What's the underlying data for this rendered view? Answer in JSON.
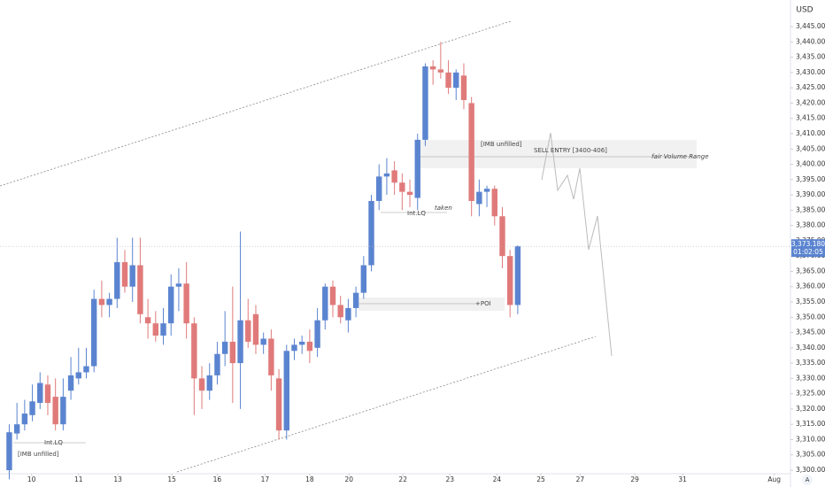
{
  "chart_data": {
    "type": "candlestick",
    "currency": "USD",
    "open": [
      3300,
      3312,
      3315,
      3318,
      3322,
      3328,
      3324,
      3315,
      3326,
      3330,
      3332,
      3334,
      3356,
      3354,
      3356,
      3368,
      3360,
      3367,
      3350,
      3348,
      3344,
      3348,
      3360,
      3361,
      3348,
      3330,
      3326,
      3331,
      3338,
      3342,
      3335,
      3349,
      3351,
      3341,
      3343,
      3330,
      3313,
      3339,
      3341,
      3342,
      3340,
      3349,
      3360,
      3354,
      3349,
      3353,
      3358,
      3367,
      3388,
      3396,
      3398,
      3394,
      3391,
      3389,
      3408,
      3432,
      3431,
      3430,
      3425,
      3429,
      3420,
      3387,
      3391,
      3392,
      3383,
      3370,
      3354
    ],
    "high": [
      3315,
      3322,
      3323,
      3328,
      3332,
      3331,
      3330,
      3330,
      3337,
      3340,
      3340,
      3359,
      3362,
      3358,
      3376,
      3372,
      3376,
      3376,
      3356,
      3352,
      3353,
      3364,
      3366,
      3368,
      3350,
      3334,
      3335,
      3342,
      3352,
      3360,
      3378,
      3356,
      3354,
      3345,
      3346,
      3333,
      3341,
      3343,
      3344,
      3346,
      3353,
      3361,
      3362,
      3357,
      3356,
      3360,
      3370,
      3390,
      3400,
      3402,
      3401,
      3397,
      3395,
      3410,
      3433,
      3434,
      3440,
      3434,
      3431,
      3433,
      3422,
      3395,
      3393,
      3393,
      3386,
      3372,
      3373.5
    ],
    "low": [
      3297,
      3310,
      3313,
      3316,
      3320,
      3318,
      3313,
      3313,
      3323,
      3328,
      3330,
      3332,
      3350,
      3350,
      3353,
      3358,
      3355,
      3348,
      3343,
      3342,
      3341,
      3344,
      3352,
      3343,
      3318,
      3320,
      3323,
      3328,
      3334,
      3322,
      3320,
      3340,
      3338,
      3338,
      3326,
      3310,
      3310,
      3336,
      3338,
      3335,
      3337,
      3346,
      3350,
      3348,
      3345,
      3350,
      3356,
      3365,
      3385,
      3390,
      3390,
      3385,
      3386,
      3385,
      3406,
      3426,
      3428,
      3423,
      3421,
      3418,
      3383,
      3383,
      3386,
      3380,
      3366,
      3350,
      3351
    ],
    "close": [
      3312.4,
      3315,
      3318.5,
      3322.5,
      3328.5,
      3322,
      3315,
      3324,
      3331,
      3332,
      3334,
      3356,
      3354,
      3356,
      3368,
      3360,
      3367,
      3351,
      3348,
      3344,
      3348,
      3360,
      3361,
      3348,
      3330,
      3326,
      3331,
      3338,
      3342,
      3335,
      3349,
      3342,
      3341,
      3343,
      3331,
      3313,
      3339,
      3341,
      3342,
      3339,
      3349,
      3360,
      3354,
      3350,
      3353,
      3358,
      3367,
      3388,
      3396,
      3397,
      3394,
      3391,
      3390,
      3408,
      3432,
      3431,
      3430,
      3425,
      3430,
      3421,
      3388,
      3391,
      3392,
      3383,
      3370,
      3354,
      3373.18
    ],
    "up_color": "#5b84d0",
    "down_color": "#e07a7a",
    "last_price": {
      "value": 3373.18,
      "label": "3,373.180"
    },
    "countdown": "01:02:05",
    "ylim": [
      3297.4,
      3453.7
    ],
    "yticks": [
      {
        "value": 3300,
        "label": "3,300.000"
      },
      {
        "value": 3305,
        "label": "3,305.000"
      },
      {
        "value": 3310,
        "label": "3,310.000"
      },
      {
        "value": 3315,
        "label": "3,315.000"
      },
      {
        "value": 3320,
        "label": "3,320.000"
      },
      {
        "value": 3325,
        "label": "3,325.000"
      },
      {
        "value": 3330,
        "label": "3,330.000"
      },
      {
        "value": 3335,
        "label": "3,335.000"
      },
      {
        "value": 3340,
        "label": "3,340.000"
      },
      {
        "value": 3345,
        "label": "3,345.000"
      },
      {
        "value": 3350,
        "label": "3,350.000"
      },
      {
        "value": 3355,
        "label": "3,355.000"
      },
      {
        "value": 3360,
        "label": "3,360.000"
      },
      {
        "value": 3365,
        "label": "3,365.000"
      },
      {
        "value": 3370,
        "label": "3,370.000"
      },
      {
        "value": 3375,
        "label": "3,375.000"
      },
      {
        "value": 3380,
        "label": "3,380.000"
      },
      {
        "value": 3385,
        "label": "3,385.000"
      },
      {
        "value": 3390,
        "label": "3,390.000"
      },
      {
        "value": 3395,
        "label": "3,395.000"
      },
      {
        "value": 3400,
        "label": "3,400.000"
      },
      {
        "value": 3405,
        "label": "3,405.000"
      },
      {
        "value": 3410,
        "label": "3,410.000"
      },
      {
        "value": 3415,
        "label": "3,415.000"
      },
      {
        "value": 3420,
        "label": "3,420.000"
      },
      {
        "value": 3425,
        "label": "3,425.000"
      },
      {
        "value": 3430,
        "label": "3,430.000"
      },
      {
        "value": 3435,
        "label": "3,435.000"
      },
      {
        "value": 3440,
        "label": "3,440.000"
      },
      {
        "value": 3445,
        "label": "3,445.000"
      }
    ],
    "xlim": [
      -1.2,
      101.4
    ],
    "xticks": [
      {
        "value": 2.9,
        "label": "10"
      },
      {
        "value": 9.0,
        "label": "11"
      },
      {
        "value": 14.1,
        "label": "13"
      },
      {
        "value": 21.1,
        "label": "15"
      },
      {
        "value": 27.0,
        "label": "16"
      },
      {
        "value": 33.2,
        "label": "17"
      },
      {
        "value": 39.0,
        "label": "18"
      },
      {
        "value": 44.1,
        "label": "20"
      },
      {
        "value": 51.1,
        "label": "22"
      },
      {
        "value": 57.2,
        "label": "23"
      },
      {
        "value": 63.3,
        "label": "24"
      },
      {
        "value": 69.0,
        "label": "25"
      },
      {
        "value": 74.1,
        "label": "27"
      },
      {
        "value": 81.2,
        "label": "29"
      },
      {
        "value": 87.4,
        "label": "31"
      },
      {
        "value": 99.3,
        "label": "Aug"
      }
    ],
    "annotations": [
      "[IMB unfilled]",
      "SELL ENTRY [3400-406]",
      "fair Volume Range",
      "taken",
      "Int.LQ",
      "+POI",
      "Int.LQ",
      "[IMB unfilled]"
    ]
  }
}
